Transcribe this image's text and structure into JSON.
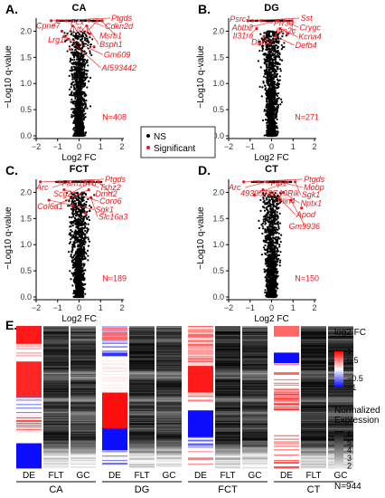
{
  "chart_data": [
    {
      "type": "scatter",
      "panel": "A.",
      "title": "CA",
      "xlabel": "Log2 FC",
      "ylabel": "−Log10 q-value",
      "xlim": [
        -2,
        2
      ],
      "ylim": [
        0,
        2.25
      ],
      "xticks": [
        -2,
        -1,
        0,
        1,
        2
      ],
      "yticks": [
        0.0,
        0.5,
        1.0,
        1.5,
        2.0
      ],
      "n_label": "N=408",
      "spread": 1.0,
      "significant_points": [
        {
          "x": -1.3,
          "y": 2.2
        },
        {
          "x": -1.0,
          "y": 2.2
        },
        {
          "x": -0.6,
          "y": 2.2
        },
        {
          "x": 0.45,
          "y": 2.2
        },
        {
          "x": 0.85,
          "y": 2.2
        },
        {
          "x": 1.05,
          "y": 2.2
        },
        {
          "x": -0.3,
          "y": 2.1
        },
        {
          "x": 0.35,
          "y": 2.1
        },
        {
          "x": -0.7,
          "y": 1.9
        },
        {
          "x": -0.5,
          "y": 1.85
        },
        {
          "x": 0.5,
          "y": 1.95
        },
        {
          "x": -0.8,
          "y": 2.0
        },
        {
          "x": 0.7,
          "y": 1.7
        },
        {
          "x": -0.4,
          "y": 1.65
        }
      ],
      "labels": [
        {
          "text": "Ptgds",
          "x": 1.5,
          "y": 2.2
        },
        {
          "text": "Cpne7",
          "x": -2.0,
          "y": 2.05
        },
        {
          "text": "Pcx",
          "x": -0.4,
          "y": 2.12
        },
        {
          "text": "Cdkn2d",
          "x": 1.2,
          "y": 2.04
        },
        {
          "text": "Nfx1",
          "x": -0.3,
          "y": 1.98
        },
        {
          "text": "Msrb1",
          "x": 0.95,
          "y": 1.86
        },
        {
          "text": "Lrg1",
          "x": -1.45,
          "y": 1.78
        },
        {
          "text": "Bsph1",
          "x": 0.95,
          "y": 1.7
        },
        {
          "text": "Gm609",
          "x": 1.15,
          "y": 1.5
        },
        {
          "text": "AI593442",
          "x": 1.05,
          "y": 1.25
        }
      ]
    },
    {
      "type": "scatter",
      "panel": "B.",
      "title": "DG",
      "xlabel": "Log2 FC",
      "ylabel": "−Log10 q-value",
      "xlim": [
        -2,
        2
      ],
      "ylim": [
        0,
        2.25
      ],
      "xticks": [
        -2,
        -1,
        0,
        1,
        2
      ],
      "yticks": [
        0.0,
        0.5,
        1.0,
        1.5,
        2.0
      ],
      "n_label": "N=271",
      "spread": 0.9,
      "significant_points": [
        {
          "x": -1.1,
          "y": 2.2
        },
        {
          "x": -0.9,
          "y": 2.2
        },
        {
          "x": -0.5,
          "y": 2.2
        },
        {
          "x": 0.3,
          "y": 2.2
        },
        {
          "x": 0.6,
          "y": 2.2
        },
        {
          "x": 0.95,
          "y": 2.2
        },
        {
          "x": -0.7,
          "y": 2.05
        },
        {
          "x": 0.4,
          "y": 2.05
        },
        {
          "x": -0.35,
          "y": 1.9
        },
        {
          "x": 0.2,
          "y": 1.9
        },
        {
          "x": 0.75,
          "y": 1.95
        },
        {
          "x": -0.55,
          "y": 1.75
        }
      ],
      "labels": [
        {
          "text": "Psrc1",
          "x": -1.95,
          "y": 2.18
        },
        {
          "text": "Sst",
          "x": 1.35,
          "y": 2.2
        },
        {
          "text": "Prr30",
          "x": 0.1,
          "y": 2.1
        },
        {
          "text": "Abtb2",
          "x": -1.85,
          "y": 2.02
        },
        {
          "text": "Crygc",
          "x": 1.3,
          "y": 2.02
        },
        {
          "text": "Itm2c",
          "x": 0.2,
          "y": 1.96
        },
        {
          "text": "Il31ra",
          "x": -1.8,
          "y": 1.86
        },
        {
          "text": "Kcna4",
          "x": 1.25,
          "y": 1.84
        },
        {
          "text": "Dhrs2",
          "x": -0.95,
          "y": 1.74
        },
        {
          "text": "Defb4",
          "x": 1.1,
          "y": 1.68
        }
      ]
    },
    {
      "type": "scatter",
      "panel": "C.",
      "title": "FCT",
      "xlabel": "Log2 FC",
      "ylabel": "−Log10 q-value",
      "xlim": [
        -2,
        2
      ],
      "ylim": [
        0,
        2.25
      ],
      "xticks": [
        -2,
        -1,
        0,
        1,
        2
      ],
      "yticks": [
        0.0,
        0.5,
        1.0,
        1.5,
        2.0
      ],
      "n_label": "N=189",
      "spread": 1.0,
      "significant_points": [
        {
          "x": -1.8,
          "y": 2.2
        },
        {
          "x": -0.9,
          "y": 2.2
        },
        {
          "x": -0.5,
          "y": 2.2
        },
        {
          "x": 0.3,
          "y": 2.2
        },
        {
          "x": 0.6,
          "y": 2.2
        },
        {
          "x": 0.9,
          "y": 2.2
        },
        {
          "x": -0.7,
          "y": 2.05
        },
        {
          "x": 0.45,
          "y": 2.05
        },
        {
          "x": -1.4,
          "y": 1.85
        },
        {
          "x": 0.55,
          "y": 1.9
        },
        {
          "x": -0.3,
          "y": 1.75
        },
        {
          "x": 0.3,
          "y": 1.6
        }
      ],
      "labels": [
        {
          "text": "Ptgds",
          "x": 1.2,
          "y": 2.2
        },
        {
          "text": "Fam187b",
          "x": -0.8,
          "y": 2.12
        },
        {
          "text": "Arc",
          "x": -2.0,
          "y": 2.04
        },
        {
          "text": "Tshz2",
          "x": 0.95,
          "y": 2.04
        },
        {
          "text": "Scg2",
          "x": -1.2,
          "y": 1.92
        },
        {
          "text": "Dmrt2",
          "x": 0.75,
          "y": 1.92
        },
        {
          "text": "Coro6",
          "x": 0.95,
          "y": 1.78
        },
        {
          "text": "Col6a1",
          "x": -1.95,
          "y": 1.68
        },
        {
          "text": "Sgk1",
          "x": 0.75,
          "y": 1.62
        },
        {
          "text": "Slc16a3",
          "x": 0.9,
          "y": 1.48
        }
      ]
    },
    {
      "type": "scatter",
      "panel": "D.",
      "title": "CT",
      "xlabel": "Log2 FC",
      "ylabel": "−Log10 q-value",
      "xlim": [
        -2,
        2
      ],
      "ylim": [
        0,
        2.25
      ],
      "xticks": [
        -2,
        -1,
        0,
        1,
        2
      ],
      "yticks": [
        0.0,
        0.5,
        1.0,
        1.5,
        2.0
      ],
      "n_label": "N=150",
      "spread": 0.85,
      "significant_points": [
        {
          "x": -1.3,
          "y": 2.2
        },
        {
          "x": -0.6,
          "y": 2.2
        },
        {
          "x": -0.2,
          "y": 2.2
        },
        {
          "x": 0.4,
          "y": 2.2
        },
        {
          "x": 0.75,
          "y": 2.2
        },
        {
          "x": 1.1,
          "y": 2.2
        },
        {
          "x": -0.4,
          "y": 2.05
        },
        {
          "x": 0.55,
          "y": 2.0
        },
        {
          "x": 0.35,
          "y": 1.9
        },
        {
          "x": 0.9,
          "y": 1.85
        },
        {
          "x": -0.8,
          "y": 1.95
        },
        {
          "x": 1.4,
          "y": 1.7
        }
      ],
      "labels": [
        {
          "text": "Ptgds",
          "x": 1.5,
          "y": 2.2
        },
        {
          "text": "Plp1",
          "x": -0.05,
          "y": 2.12
        },
        {
          "text": "Arc",
          "x": -2.0,
          "y": 2.04
        },
        {
          "text": "Mobp",
          "x": 1.5,
          "y": 2.04
        },
        {
          "text": "4930578G10Rik",
          "x": -1.45,
          "y": 1.93
        },
        {
          "text": "Sgk1",
          "x": 1.4,
          "y": 1.9
        },
        {
          "text": "Plin4",
          "x": 0.25,
          "y": 1.78
        },
        {
          "text": "Nptx1",
          "x": 1.35,
          "y": 1.74
        },
        {
          "text": "Apod",
          "x": 1.15,
          "y": 1.52
        },
        {
          "text": "Gm9936",
          "x": 0.8,
          "y": 1.3
        }
      ]
    },
    {
      "type": "heatmap",
      "panel": "E.",
      "groups": [
        "CA",
        "DG",
        "FCT",
        "CT"
      ],
      "columns": [
        "DE",
        "FLT",
        "GC"
      ],
      "n_label": "N=944",
      "fc_scale": {
        "title": "log2 FC",
        "ticks": [
          "1",
          "0.5",
          "−0.5",
          "−1"
        ],
        "values": [
          1,
          0.5,
          -0.5,
          -1
        ]
      },
      "expr_scale": {
        "title": "Normalized Expression",
        "ticks": [
          "6",
          "5",
          "4",
          "3",
          "2"
        ],
        "values": [
          6,
          5,
          4,
          3,
          2
        ]
      }
    }
  ],
  "legend": {
    "items": [
      {
        "label": "NS",
        "color": "#000000"
      },
      {
        "label": "Significant",
        "color": "#e8191c"
      }
    ]
  },
  "colors": {
    "significant": "#e8191c",
    "ns": "#000000",
    "up": "#ff0000",
    "down": "#0000ff"
  }
}
